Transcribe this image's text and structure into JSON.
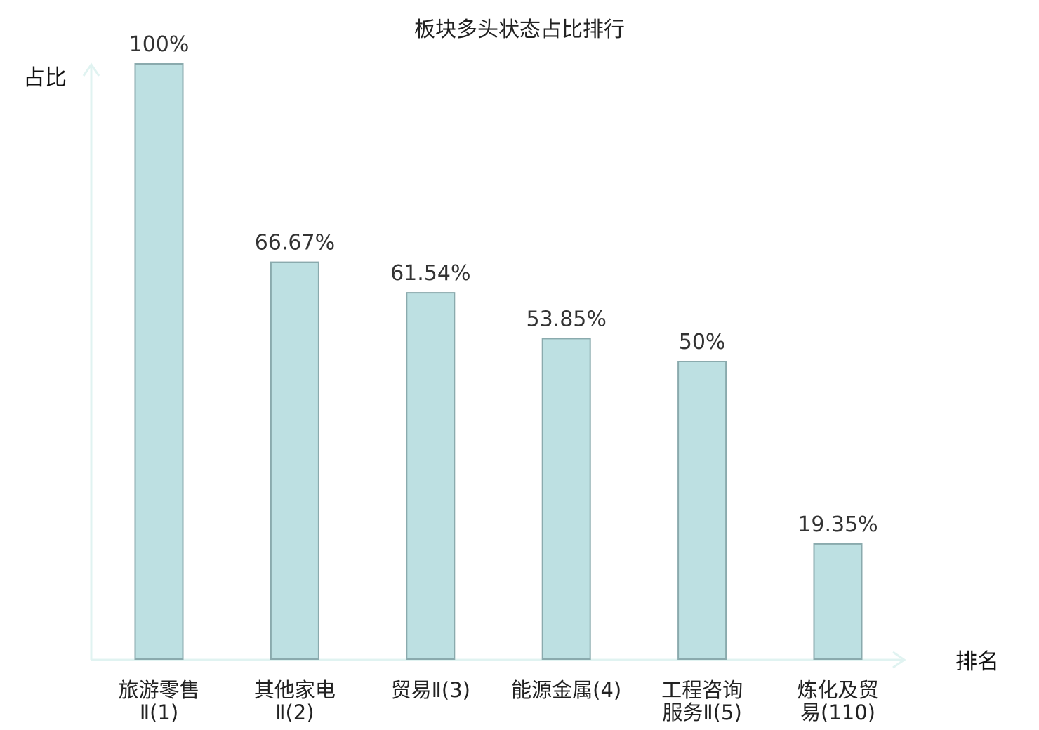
{
  "chart_data": {
    "type": "bar",
    "title": "板块多头状态占比排行",
    "ylabel": "占比",
    "xlabel": "排名",
    "ylim": [
      0,
      100
    ],
    "grid": false,
    "categories": [
      [
        "旅游零售",
        "Ⅱ(1)"
      ],
      [
        "其他家电",
        "Ⅱ(2)"
      ],
      [
        "贸易Ⅱ(3)"
      ],
      [
        "能源金属(4)"
      ],
      [
        "工程咨询",
        "服务Ⅱ(5)"
      ],
      [
        "炼化及贸",
        "易(110)"
      ]
    ],
    "values": [
      100,
      66.67,
      61.54,
      53.85,
      50,
      19.35
    ],
    "value_labels": [
      "100%",
      "66.67%",
      "61.54%",
      "53.85%",
      "50%",
      "19.35%"
    ],
    "highlight_index": 5,
    "colors": {
      "bar_fill": "#bde0e2",
      "bar_stroke": "#8aaaad",
      "axis": "#e0f3f1",
      "highlight_text": "#e8202a",
      "label_text": "#222222",
      "value_text": "#333333"
    }
  }
}
